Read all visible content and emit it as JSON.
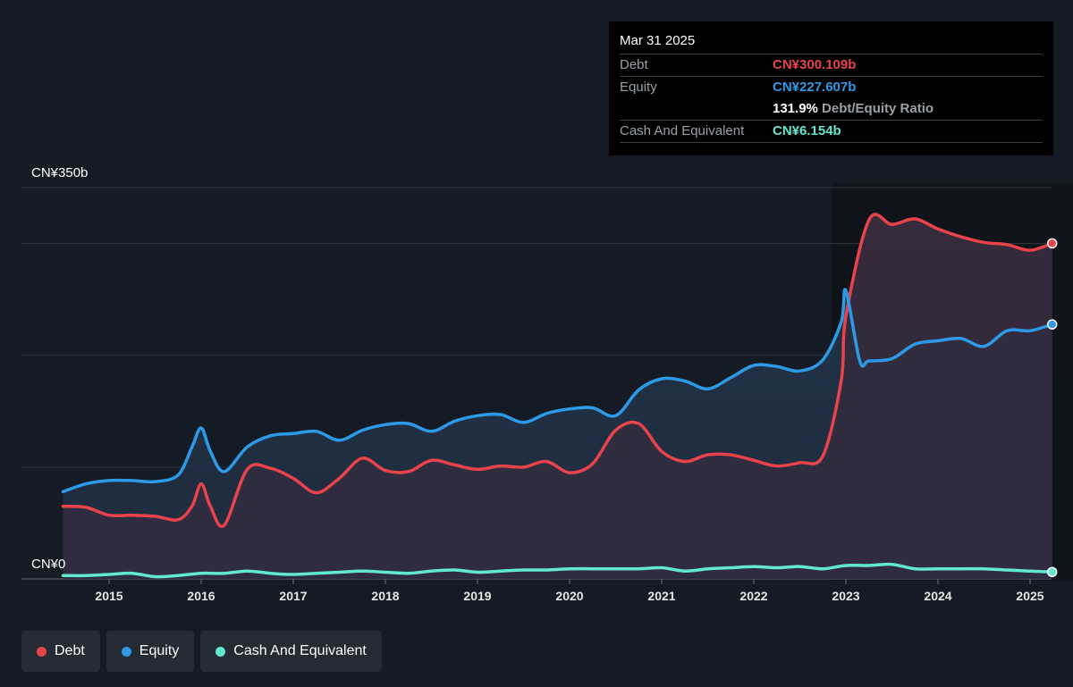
{
  "tooltip": {
    "date": "Mar 31 2025",
    "debt_label": "Debt",
    "debt_value": "CN¥300.109b",
    "equity_label": "Equity",
    "equity_value": "CN¥227.607b",
    "ratio_value": "131.9%",
    "ratio_label": "Debt/Equity Ratio",
    "cash_label": "Cash And Equivalent",
    "cash_value": "CN¥6.154b"
  },
  "legend": {
    "items": [
      {
        "label": "Debt",
        "color": "#e8434b"
      },
      {
        "label": "Equity",
        "color": "#2c9ae6"
      },
      {
        "label": "Cash And Equivalent",
        "color": "#62e8d0"
      }
    ]
  },
  "chart_data": {
    "type": "area",
    "y_axis_labels": [
      "CN¥350b",
      "CN¥0"
    ],
    "ylim": [
      0,
      350
    ],
    "x_ticks": [
      2015,
      2016,
      2017,
      2018,
      2019,
      2020,
      2021,
      2022,
      2023,
      2024,
      2025
    ],
    "xlim": [
      2014.5,
      2025.24
    ],
    "colors": {
      "debt": "#e8434b",
      "equity": "#2c9ae6",
      "cash": "#62e8d0"
    },
    "series": [
      {
        "name": "Debt",
        "x": [
          2014.5,
          2014.75,
          2015.0,
          2015.25,
          2015.5,
          2015.75,
          2015.9,
          2016.0,
          2016.1,
          2016.25,
          2016.5,
          2016.75,
          2017.0,
          2017.25,
          2017.5,
          2017.75,
          2018.0,
          2018.25,
          2018.5,
          2018.75,
          2019.0,
          2019.25,
          2019.5,
          2019.75,
          2020.0,
          2020.25,
          2020.5,
          2020.75,
          2021.0,
          2021.25,
          2021.5,
          2021.75,
          2022.0,
          2022.25,
          2022.5,
          2022.75,
          2022.95,
          2023.0,
          2023.25,
          2023.5,
          2023.75,
          2024.0,
          2024.25,
          2024.5,
          2024.75,
          2025.0,
          2025.24
        ],
        "values": [
          65,
          64,
          57,
          57,
          56,
          53,
          65,
          85,
          65,
          48,
          98,
          99,
          90,
          77,
          90,
          108,
          97,
          96,
          106,
          102,
          98,
          101,
          100,
          105,
          95,
          103,
          133,
          139,
          114,
          105,
          111,
          111,
          106,
          101,
          104,
          110,
          178,
          235,
          321,
          317,
          322,
          313,
          306,
          301,
          299,
          294,
          300.109
        ]
      },
      {
        "name": "Equity",
        "x": [
          2014.5,
          2014.75,
          2015.0,
          2015.25,
          2015.5,
          2015.75,
          2015.9,
          2016.0,
          2016.1,
          2016.25,
          2016.5,
          2016.75,
          2017.0,
          2017.25,
          2017.5,
          2017.75,
          2018.0,
          2018.25,
          2018.5,
          2018.75,
          2019.0,
          2019.25,
          2019.5,
          2019.75,
          2020.0,
          2020.25,
          2020.5,
          2020.75,
          2021.0,
          2021.25,
          2021.5,
          2021.75,
          2022.0,
          2022.25,
          2022.5,
          2022.75,
          2022.95,
          2023.0,
          2023.15,
          2023.25,
          2023.5,
          2023.75,
          2024.0,
          2024.25,
          2024.5,
          2024.75,
          2025.0,
          2025.24
        ],
        "values": [
          78,
          85,
          88,
          88,
          87,
          93,
          118,
          135,
          114,
          96,
          118,
          128,
          130,
          132,
          124,
          133,
          138,
          139,
          132,
          141,
          146,
          147,
          140,
          148,
          152,
          153,
          146,
          169,
          179,
          177,
          170,
          180,
          191,
          190,
          186,
          196,
          230,
          258,
          195,
          195,
          197,
          210,
          213,
          215,
          208,
          222,
          222,
          227.607
        ]
      },
      {
        "name": "Cash And Equivalent",
        "x": [
          2014.5,
          2014.75,
          2015.0,
          2015.25,
          2015.5,
          2015.75,
          2016.0,
          2016.25,
          2016.5,
          2016.75,
          2017.0,
          2017.25,
          2017.5,
          2017.75,
          2018.0,
          2018.25,
          2018.5,
          2018.75,
          2019.0,
          2019.25,
          2019.5,
          2019.75,
          2020.0,
          2020.25,
          2020.5,
          2020.75,
          2021.0,
          2021.25,
          2021.5,
          2021.75,
          2022.0,
          2022.25,
          2022.5,
          2022.75,
          2023.0,
          2023.25,
          2023.5,
          2023.75,
          2024.0,
          2024.25,
          2024.5,
          2024.75,
          2025.0,
          2025.24
        ],
        "values": [
          3,
          3,
          4,
          5,
          2,
          3,
          5,
          5,
          7,
          5,
          4,
          5,
          6,
          7,
          6,
          5,
          7,
          8,
          6,
          7,
          8,
          8,
          9,
          9,
          9,
          9,
          10,
          7,
          9,
          10,
          11,
          10,
          11,
          9,
          12,
          12,
          13,
          9,
          9,
          9,
          9,
          8,
          7,
          6.154
        ]
      }
    ]
  }
}
